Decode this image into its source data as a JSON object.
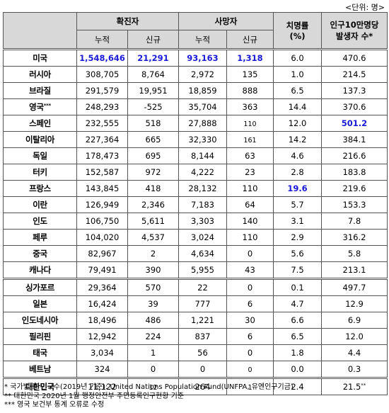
{
  "unit": "<단위: 명>",
  "headers": {
    "confirmed": "확진자",
    "deaths": "사망자",
    "fatality_rate": "치명률",
    "fatality_unit": "(%)",
    "per100k_line1": "인구10만명당",
    "per100k_line2": "발생자 수*",
    "cumulative": "누적",
    "new": "신규"
  },
  "rows": [
    {
      "country": "미국",
      "conf_cum": "1,548,646",
      "conf_new": "21,291",
      "death_cum": "93,163",
      "death_new": "1,318",
      "rate": "6.0",
      "per100k": "470.6"
    },
    {
      "country": "러시아",
      "conf_cum": "308,705",
      "conf_new": "8,764",
      "death_cum": "2,972",
      "death_new": "135",
      "rate": "1.0",
      "per100k": "214.5"
    },
    {
      "country": "브라질",
      "conf_cum": "291,579",
      "conf_new": "19,951",
      "death_cum": "18,859",
      "death_new": "888",
      "rate": "6.5",
      "per100k": "137.3"
    },
    {
      "country": "영국",
      "country_mark": "***",
      "conf_cum": "248,293",
      "conf_new": "-525",
      "death_cum": "35,704",
      "death_new": "363",
      "rate": "14.4",
      "per100k": "370.6"
    },
    {
      "country": "스페인",
      "conf_cum": "232,555",
      "conf_new": "518",
      "death_cum": "27,888",
      "death_new": "110",
      "rate": "12.0",
      "per100k": "501.2"
    },
    {
      "country": "이탈리아",
      "conf_cum": "227,364",
      "conf_new": "665",
      "death_cum": "32,330",
      "death_new": "161",
      "rate": "14.2",
      "per100k": "384.1"
    },
    {
      "country": "독일",
      "conf_cum": "178,473",
      "conf_new": "695",
      "death_cum": "8,144",
      "death_new": "63",
      "rate": "4.6",
      "per100k": "216.6"
    },
    {
      "country": "터키",
      "conf_cum": "152,587",
      "conf_new": "972",
      "death_cum": "4,222",
      "death_new": "23",
      "rate": "2.8",
      "per100k": "183.8"
    },
    {
      "country": "프랑스",
      "conf_cum": "143,845",
      "conf_new": "418",
      "death_cum": "28,132",
      "death_new": "110",
      "rate": "19.6",
      "per100k": "219.6"
    },
    {
      "country": "이란",
      "conf_cum": "126,949",
      "conf_new": "2,346",
      "death_cum": "7,183",
      "death_new": "64",
      "rate": "5.7",
      "per100k": "153.3"
    },
    {
      "country": "인도",
      "conf_cum": "106,750",
      "conf_new": "5,611",
      "death_cum": "3,303",
      "death_new": "140",
      "rate": "3.1",
      "per100k": "7.8"
    },
    {
      "country": "페루",
      "conf_cum": "104,020",
      "conf_new": "4,537",
      "death_cum": "3,024",
      "death_new": "110",
      "rate": "2.9",
      "per100k": "316.2"
    },
    {
      "country": "중국",
      "conf_cum": "82,967",
      "conf_new": "2",
      "death_cum": "4,634",
      "death_new": "0",
      "rate": "5.6",
      "per100k": "5.8"
    },
    {
      "country": "캐나다",
      "conf_cum": "79,491",
      "conf_new": "390",
      "death_cum": "5,955",
      "death_new": "43",
      "rate": "7.5",
      "per100k": "213.1"
    },
    {
      "country": "싱가포르",
      "conf_cum": "29,364",
      "conf_new": "570",
      "death_cum": "22",
      "death_new": "0",
      "rate": "0.1",
      "per100k": "497.7"
    },
    {
      "country": "일본",
      "conf_cum": "16,424",
      "conf_new": "39",
      "death_cum": "777",
      "death_new": "6",
      "rate": "4.7",
      "per100k": "12.9"
    },
    {
      "country": "인도네시아",
      "conf_cum": "18,496",
      "conf_new": "486",
      "death_cum": "1,221",
      "death_new": "30",
      "rate": "6.6",
      "per100k": "6.9"
    },
    {
      "country": "필리핀",
      "conf_cum": "12,942",
      "conf_new": "224",
      "death_cum": "837",
      "death_new": "6",
      "rate": "6.5",
      "per100k": "12.0"
    },
    {
      "country": "태국",
      "conf_cum": "3,034",
      "conf_new": "1",
      "death_cum": "56",
      "death_new": "0",
      "rate": "1.8",
      "per100k": "4.4"
    },
    {
      "country": "베트남",
      "conf_cum": "324",
      "conf_new": "0",
      "death_cum": "0",
      "death_new": "0",
      "rate": "0.0",
      "per100k": "0.3"
    },
    {
      "country": "대한민국",
      "conf_cum": "11,122",
      "conf_new": "12",
      "death_cum": "264",
      "death_new": "1",
      "rate": "2.4",
      "per100k": "21.5",
      "per100k_mark": "**"
    }
  ],
  "notes": [
    "* 국가별 총 인구수(2019년 기준): United Nations Population Fund(UNFPA, 유엔인구기금)",
    "** 대한민국 2020년 1월 행정안전부 주민등록인구현황 기준",
    "*** 영국 보건부 통계 오류로 수정"
  ],
  "highlight_color": "#1a1ad6"
}
